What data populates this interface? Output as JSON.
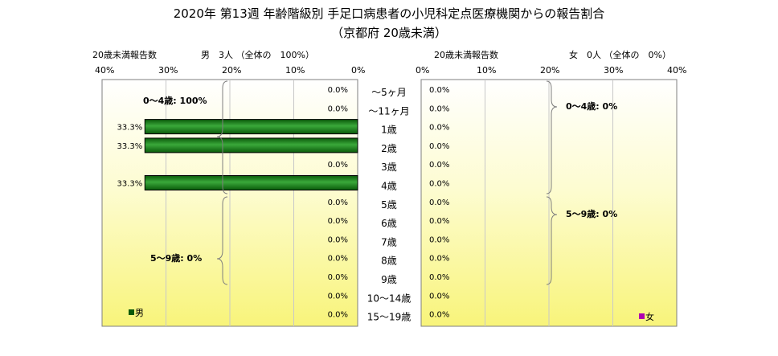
{
  "title": "2020年 第13週 年齢階級別 手足口病患者の小児科定点医療機関からの報告割合",
  "subtitle": "（京都府 20歳未満）",
  "male_panel": {
    "header_left": "20歳未満報告数",
    "header_right": "男　3人 （全体の　100%）",
    "ticks": [
      "40%",
      "30%",
      "20%",
      "10%",
      "0%"
    ],
    "legend": "男",
    "color": "#0a5a0a",
    "groups": [
      {
        "label": "0～4歳: 100%"
      },
      {
        "label": "5～9歳: 0%"
      }
    ]
  },
  "female_panel": {
    "header_left": "20歳未満報告数",
    "header_right": "女　0人 （全体の　0%）",
    "ticks": [
      "0%",
      "10%",
      "20%",
      "30%",
      "40%"
    ],
    "legend": "女",
    "color": "#b000b0",
    "groups": [
      {
        "label": "0～4歳: 0%"
      },
      {
        "label": "5～9歳: 0%"
      }
    ]
  },
  "chart_data": {
    "type": "bar",
    "orientation": "horizontal-butterfly",
    "categories": [
      "～5ヶ月",
      "～11ヶ月",
      "1歳",
      "2歳",
      "3歳",
      "4歳",
      "5歳",
      "6歳",
      "7歳",
      "8歳",
      "9歳",
      "10～14歳",
      "15～19歳"
    ],
    "series": [
      {
        "name": "男",
        "values": [
          0.0,
          0.0,
          33.3,
          33.3,
          0.0,
          33.3,
          0.0,
          0.0,
          0.0,
          0.0,
          0.0,
          0.0,
          0.0
        ],
        "labels": [
          "0.0%",
          "0.0%",
          "33.3%",
          "33.3%",
          "0.0%",
          "33.3%",
          "0.0%",
          "0.0%",
          "0.0%",
          "0.0%",
          "0.0%",
          "0.0%",
          "0.0%"
        ]
      },
      {
        "name": "女",
        "values": [
          0.0,
          0.0,
          0.0,
          0.0,
          0.0,
          0.0,
          0.0,
          0.0,
          0.0,
          0.0,
          0.0,
          0.0,
          0.0
        ],
        "labels": [
          "0.0%",
          "0.0%",
          "0.0%",
          "0.0%",
          "0.0%",
          "0.0%",
          "0.0%",
          "0.0%",
          "0.0%",
          "0.0%",
          "0.0%",
          "0.0%",
          "0.0%"
        ]
      }
    ],
    "xlim": [
      0,
      40
    ],
    "grid": true,
    "gridlines": [
      10,
      20,
      30
    ]
  }
}
